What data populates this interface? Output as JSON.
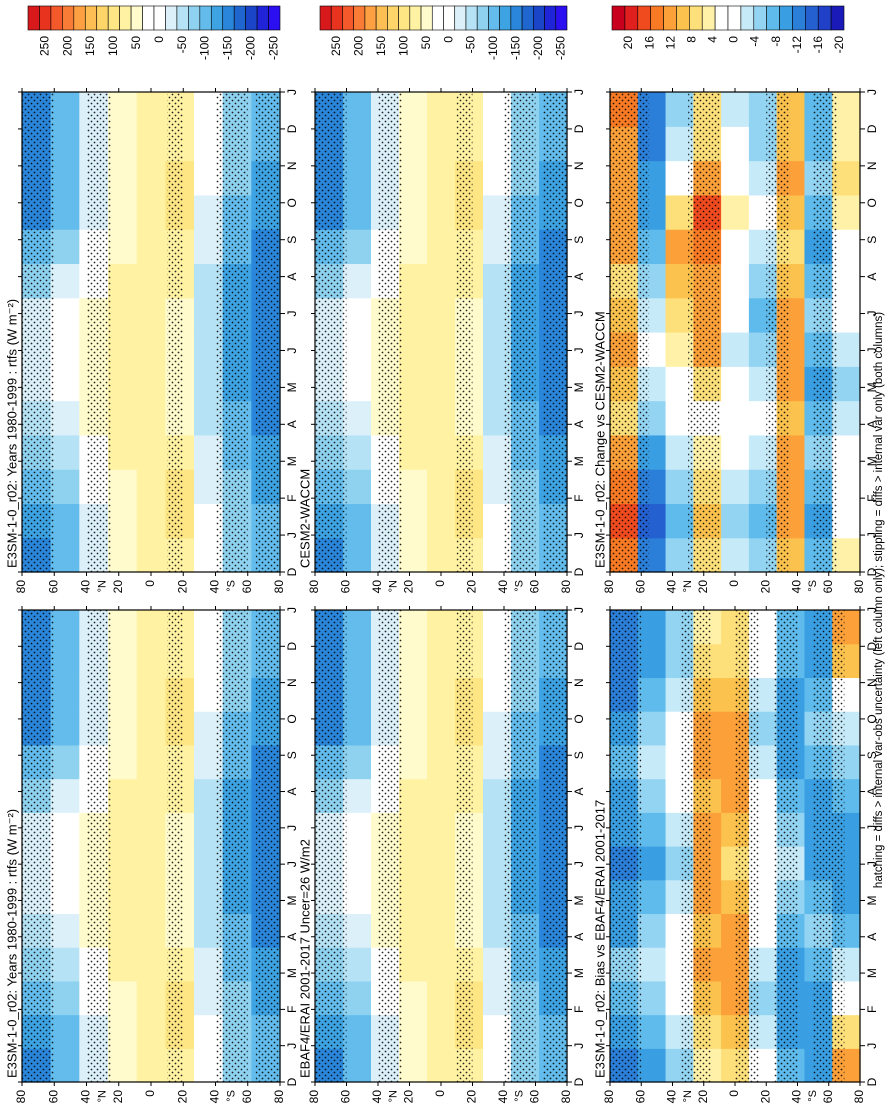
{
  "figure": {
    "caption": "hatching = diffs > internal var-obs uncertainty (left column only); stippling = diffs > internal var only (both columns)",
    "month_labels": [
      "D",
      "J",
      "F",
      "M",
      "A",
      "M",
      "J",
      "J",
      "A",
      "S",
      "O",
      "N",
      "D",
      "J"
    ],
    "lat_labels": [
      "80",
      "60",
      "40",
      "20",
      "0",
      "20",
      "40",
      "60",
      "80"
    ],
    "lat_hemisphere_labels": [
      {
        "at": 40,
        "text": "°N"
      },
      {
        "at": -40,
        "text": "°S"
      }
    ]
  },
  "colorbars": {
    "rad": {
      "colors": [
        "#d7191c",
        "#e8341f",
        "#f4592c",
        "#f97c36",
        "#fca041",
        "#fdbf54",
        "#fdd569",
        "#fee685",
        "#fff2a3",
        "#fffbcc",
        "#ffffff",
        "#ffffff",
        "#dcf0fa",
        "#b6e2f5",
        "#8ed2f0",
        "#63bceb",
        "#3ea3e3",
        "#2a86da",
        "#1f66cf",
        "#1a45c8",
        "#1f24d8",
        "#2b0ff0"
      ],
      "labels": [
        "250",
        "200",
        "150",
        "100",
        "50",
        "0",
        "-50",
        "-100",
        "-150",
        "-200",
        "-250"
      ]
    },
    "diff": {
      "colors": [
        "#c8001e",
        "#e0201e",
        "#f04a1f",
        "#f87a24",
        "#fca03a",
        "#fcc24e",
        "#fde07a",
        "#fff2a8",
        "#ffffff",
        "#ffffff",
        "#c6eaf8",
        "#93d4f2",
        "#5ebbeb",
        "#3a9fe2",
        "#2b7fd9",
        "#2560d0",
        "#2140c8",
        "#1a1ab8"
      ],
      "labels": [
        "20",
        "16",
        "12",
        "8",
        "4",
        "0",
        "-4",
        "-8",
        "-12",
        "-16",
        "-20"
      ]
    }
  },
  "chart_data": [
    {
      "type": "heatmap",
      "title": "E3SM-1-0_r02: Years 1980-1999 : rtfs (W m⁻²)",
      "field": "rad",
      "x": [
        "D",
        "J",
        "F",
        "M",
        "A",
        "M",
        "J",
        "J",
        "A",
        "S",
        "O",
        "N",
        "D",
        "J"
      ],
      "y": [
        80,
        60,
        40,
        20,
        0,
        -20,
        -40,
        -60,
        -80
      ],
      "values": [
        [
          -150,
          -140,
          -120,
          -90,
          -60,
          -40,
          -30,
          -45,
          -80,
          -120,
          -150,
          -150,
          -150,
          -150
        ],
        [
          -120,
          -110,
          -90,
          -60,
          -30,
          -10,
          0,
          -10,
          -40,
          -80,
          -110,
          -120,
          -120,
          -120
        ],
        [
          -40,
          -30,
          -10,
          10,
          30,
          40,
          40,
          40,
          20,
          -10,
          -30,
          -40,
          -40,
          -40
        ],
        [
          30,
          40,
          50,
          60,
          60,
          60,
          55,
          60,
          60,
          50,
          40,
          30,
          30,
          30
        ],
        [
          60,
          70,
          70,
          70,
          60,
          60,
          60,
          60,
          70,
          70,
          60,
          60,
          60,
          60
        ],
        [
          60,
          90,
          80,
          60,
          40,
          30,
          30,
          40,
          60,
          70,
          80,
          90,
          70,
          60
        ],
        [
          -10,
          -20,
          -30,
          -40,
          -50,
          -60,
          -60,
          -60,
          -50,
          -40,
          -30,
          -20,
          -10,
          -10
        ],
        [
          -90,
          -100,
          -100,
          -110,
          -120,
          -130,
          -140,
          -140,
          -130,
          -120,
          -110,
          -100,
          -90,
          -90
        ],
        [
          -120,
          -110,
          -130,
          -140,
          -150,
          -160,
          -170,
          -170,
          -160,
          -150,
          -140,
          -130,
          -120,
          -120
        ]
      ],
      "stipple_rows": [
        [
          60,
          80
        ],
        [
          25,
          40
        ],
        [
          -20,
          -10
        ],
        [
          -60,
          -40
        ],
        [
          -80,
          -65
        ]
      ]
    },
    {
      "type": "heatmap",
      "title": "EBAF4/ERAI 2001-2017 Uncer=26 W/m2",
      "field": "rad",
      "x": [
        "D",
        "J",
        "F",
        "M",
        "A",
        "M",
        "J",
        "J",
        "A",
        "S",
        "O",
        "N",
        "D",
        "J"
      ],
      "y": [
        80,
        60,
        40,
        20,
        0,
        -20,
        -40,
        -60,
        -80
      ],
      "values": [
        [
          -150,
          -140,
          -120,
          -90,
          -60,
          -40,
          -30,
          -45,
          -80,
          -120,
          -150,
          -150,
          -150,
          -150
        ],
        [
          -120,
          -110,
          -90,
          -60,
          -30,
          -10,
          0,
          -10,
          -40,
          -80,
          -110,
          -120,
          -120,
          -120
        ],
        [
          -40,
          -30,
          -10,
          10,
          30,
          40,
          40,
          40,
          20,
          -10,
          -30,
          -40,
          -40,
          -40
        ],
        [
          30,
          40,
          50,
          60,
          60,
          60,
          55,
          60,
          60,
          50,
          40,
          30,
          30,
          30
        ],
        [
          60,
          70,
          70,
          70,
          60,
          60,
          60,
          60,
          70,
          70,
          60,
          60,
          60,
          60
        ],
        [
          60,
          90,
          80,
          60,
          40,
          30,
          30,
          40,
          60,
          70,
          80,
          90,
          70,
          60
        ],
        [
          -10,
          -20,
          -30,
          -40,
          -50,
          -60,
          -60,
          -60,
          -50,
          -40,
          -30,
          -20,
          -10,
          -10
        ],
        [
          -90,
          -100,
          -100,
          -110,
          -120,
          -130,
          -140,
          -140,
          -130,
          -120,
          -110,
          -100,
          -90,
          -90
        ],
        [
          -120,
          -110,
          -130,
          -140,
          -150,
          -160,
          -170,
          -170,
          -160,
          -150,
          -140,
          -130,
          -120,
          -120
        ]
      ],
      "stipple_rows": [
        [
          60,
          80
        ],
        [
          25,
          40
        ],
        [
          -20,
          -10
        ],
        [
          -60,
          -40
        ],
        [
          -80,
          -65
        ]
      ]
    },
    {
      "type": "heatmap",
      "title": "E3SM-1-0_r02: Bias vs EBAF4/ERAI 2001-2017",
      "field": "diff",
      "x": [
        "D",
        "J",
        "F",
        "M",
        "A",
        "M",
        "J",
        "J",
        "A",
        "S",
        "O",
        "N",
        "D",
        "J"
      ],
      "y": [
        80,
        60,
        40,
        20,
        0,
        -20,
        -40,
        -60,
        -80
      ],
      "values": [
        [
          -14,
          -12,
          -8,
          -6,
          -10,
          -12,
          -14,
          -12,
          -10,
          -8,
          -12,
          -14,
          -14,
          -14
        ],
        [
          -10,
          -8,
          -6,
          -4,
          -6,
          -8,
          -10,
          -8,
          -6,
          -4,
          -6,
          -8,
          -10,
          -10
        ],
        [
          -6,
          -4,
          -2,
          0,
          -2,
          -4,
          -6,
          -4,
          -2,
          0,
          -2,
          -4,
          -6,
          -6
        ],
        [
          4,
          6,
          8,
          10,
          8,
          10,
          12,
          10,
          8,
          10,
          12,
          8,
          6,
          4
        ],
        [
          6,
          8,
          10,
          12,
          10,
          8,
          6,
          8,
          10,
          12,
          10,
          8,
          6,
          6
        ],
        [
          -2,
          -4,
          -6,
          -4,
          -2,
          0,
          2,
          0,
          -2,
          -4,
          -6,
          -4,
          -2,
          -2
        ],
        [
          -8,
          -10,
          -12,
          -10,
          -8,
          -6,
          -4,
          -6,
          -8,
          -10,
          -12,
          -10,
          -8,
          -8
        ],
        [
          -10,
          -12,
          -10,
          -8,
          -6,
          -8,
          -10,
          -12,
          -10,
          -8,
          -6,
          -8,
          -10,
          -10
        ],
        [
          10,
          6,
          2,
          -4,
          -8,
          -10,
          -12,
          -10,
          -8,
          -6,
          -4,
          2,
          8,
          10
        ]
      ],
      "stipple_rows": [
        [
          60,
          80
        ],
        [
          15,
          35
        ],
        [
          -15,
          0
        ],
        [
          -40,
          -25
        ],
        [
          -70,
          -50
        ]
      ]
    },
    {
      "type": "heatmap",
      "title": "E3SM-1-0_r02: Years 1980-1999 : rtfs (W m⁻²)",
      "field": "rad",
      "x": [
        "D",
        "J",
        "F",
        "M",
        "A",
        "M",
        "J",
        "J",
        "A",
        "S",
        "O",
        "N",
        "D",
        "J"
      ],
      "y": [
        80,
        60,
        40,
        20,
        0,
        -20,
        -40,
        -60,
        -80
      ],
      "values": [
        [
          -150,
          -140,
          -120,
          -90,
          -60,
          -40,
          -30,
          -45,
          -80,
          -120,
          -150,
          -150,
          -150,
          -150
        ],
        [
          -120,
          -110,
          -90,
          -60,
          -30,
          -10,
          0,
          -10,
          -40,
          -80,
          -110,
          -120,
          -120,
          -120
        ],
        [
          -40,
          -30,
          -10,
          10,
          30,
          40,
          40,
          40,
          20,
          -10,
          -30,
          -40,
          -40,
          -40
        ],
        [
          30,
          40,
          50,
          60,
          60,
          60,
          55,
          60,
          60,
          50,
          40,
          30,
          30,
          30
        ],
        [
          60,
          70,
          70,
          70,
          60,
          60,
          60,
          60,
          70,
          70,
          60,
          60,
          60,
          60
        ],
        [
          60,
          90,
          80,
          60,
          40,
          30,
          30,
          40,
          60,
          70,
          80,
          90,
          70,
          60
        ],
        [
          -10,
          -20,
          -30,
          -40,
          -50,
          -60,
          -60,
          -60,
          -50,
          -40,
          -30,
          -20,
          -10,
          -10
        ],
        [
          -90,
          -100,
          -100,
          -110,
          -120,
          -130,
          -140,
          -140,
          -130,
          -120,
          -110,
          -100,
          -90,
          -90
        ],
        [
          -120,
          -110,
          -130,
          -140,
          -150,
          -160,
          -170,
          -170,
          -160,
          -150,
          -140,
          -130,
          -120,
          -120
        ]
      ],
      "stipple_rows": [
        [
          60,
          80
        ],
        [
          25,
          40
        ],
        [
          -20,
          -10
        ],
        [
          -60,
          -40
        ],
        [
          -80,
          -65
        ]
      ]
    },
    {
      "type": "heatmap",
      "title": "CESM2-WACCM",
      "field": "rad",
      "x": [
        "D",
        "J",
        "F",
        "M",
        "A",
        "M",
        "J",
        "J",
        "A",
        "S",
        "O",
        "N",
        "D",
        "J"
      ],
      "y": [
        80,
        60,
        40,
        20,
        0,
        -20,
        -40,
        -60,
        -80
      ],
      "values": [
        [
          -150,
          -140,
          -120,
          -90,
          -60,
          -40,
          -30,
          -45,
          -80,
          -120,
          -150,
          -150,
          -150,
          -150
        ],
        [
          -120,
          -110,
          -90,
          -60,
          -30,
          -10,
          0,
          -10,
          -40,
          -80,
          -110,
          -120,
          -120,
          -120
        ],
        [
          -40,
          -30,
          -10,
          10,
          30,
          40,
          40,
          40,
          20,
          -10,
          -30,
          -40,
          -40,
          -40
        ],
        [
          30,
          40,
          50,
          60,
          60,
          60,
          55,
          60,
          60,
          50,
          40,
          30,
          30,
          30
        ],
        [
          60,
          70,
          70,
          70,
          60,
          60,
          60,
          60,
          70,
          70,
          60,
          60,
          60,
          60
        ],
        [
          60,
          90,
          80,
          60,
          40,
          30,
          30,
          40,
          60,
          70,
          80,
          90,
          70,
          60
        ],
        [
          -10,
          -20,
          -30,
          -40,
          -50,
          -60,
          -60,
          -60,
          -50,
          -40,
          -30,
          -20,
          -10,
          -10
        ],
        [
          -90,
          -100,
          -100,
          -110,
          -120,
          -130,
          -140,
          -140,
          -130,
          -120,
          -110,
          -100,
          -90,
          -90
        ],
        [
          -120,
          -110,
          -130,
          -140,
          -150,
          -160,
          -170,
          -170,
          -160,
          -150,
          -140,
          -130,
          -120,
          -120
        ]
      ],
      "stipple_rows": [
        [
          60,
          80
        ],
        [
          25,
          40
        ],
        [
          -20,
          -10
        ],
        [
          -60,
          -40
        ],
        [
          -80,
          -65
        ]
      ]
    },
    {
      "type": "heatmap",
      "title": "E3SM-1-0_r02: Change vs CESM2-WACCM",
      "field": "diff",
      "x": [
        "D",
        "J",
        "F",
        "M",
        "A",
        "M",
        "J",
        "J",
        "A",
        "S",
        "O",
        "N",
        "D",
        "J"
      ],
      "y": [
        80,
        60,
        40,
        20,
        0,
        -20,
        -40,
        -60,
        -80
      ],
      "values": [
        [
          14,
          16,
          14,
          10,
          6,
          8,
          10,
          8,
          6,
          10,
          12,
          10,
          12,
          14
        ],
        [
          -14,
          -16,
          -14,
          -10,
          -6,
          -4,
          -2,
          -4,
          -6,
          -8,
          -10,
          -12,
          -14,
          -14
        ],
        [
          -6,
          -8,
          -6,
          -4,
          -2,
          2,
          4,
          6,
          8,
          10,
          6,
          2,
          -4,
          -6
        ],
        [
          6,
          8,
          6,
          4,
          2,
          6,
          10,
          12,
          10,
          14,
          16,
          10,
          6,
          6
        ],
        [
          -4,
          -6,
          -4,
          -2,
          0,
          -2,
          -4,
          -2,
          0,
          2,
          4,
          2,
          -2,
          -4
        ],
        [
          -6,
          -8,
          -6,
          -4,
          -2,
          -4,
          -6,
          -8,
          -6,
          -4,
          -2,
          -4,
          -6,
          -6
        ],
        [
          8,
          10,
          12,
          10,
          8,
          10,
          12,
          10,
          8,
          6,
          8,
          10,
          8,
          8
        ],
        [
          -8,
          -10,
          -8,
          -6,
          -8,
          -10,
          -8,
          -6,
          -8,
          -10,
          -8,
          -6,
          -8,
          -8
        ],
        [
          4,
          2,
          0,
          -2,
          -4,
          -6,
          -4,
          -2,
          0,
          2,
          4,
          6,
          4,
          4
        ]
      ],
      "stipple_rows": [
        [
          55,
          80
        ],
        [
          10,
          30
        ],
        [
          -35,
          -20
        ],
        [
          -65,
          -50
        ]
      ]
    }
  ]
}
